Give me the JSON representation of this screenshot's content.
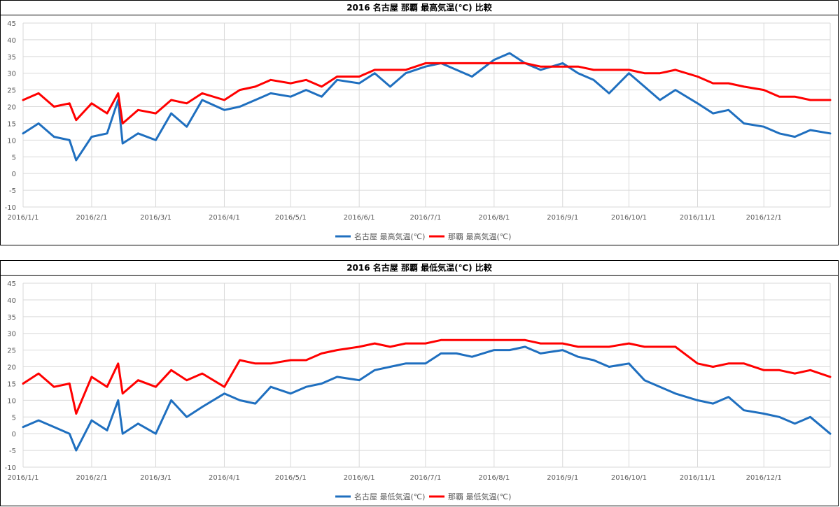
{
  "chart_data": [
    {
      "type": "line",
      "title": "2016 名古屋 那覇 最高気温(℃) 比較",
      "ylim": [
        -10,
        45
      ],
      "yticks": [
        -10,
        -5,
        0,
        5,
        10,
        15,
        20,
        25,
        30,
        35,
        40,
        45
      ],
      "xlim": [
        "2016/1/1",
        "2016/12/31"
      ],
      "xticks": [
        "2016/1/1",
        "2016/2/1",
        "2016/3/1",
        "2016/4/1",
        "2016/5/1",
        "2016/6/1",
        "2016/7/1",
        "2016/8/1",
        "2016/9/1",
        "2016/10/1",
        "2016/11/1",
        "2016/12/1"
      ],
      "grid": "vertical and horizontal",
      "legend": "bottom",
      "series": [
        {
          "name": "名古屋 最高気温(℃)",
          "color": "#1F6FBF",
          "x": [
            "2016/1/1",
            "2016/1/8",
            "2016/1/15",
            "2016/1/22",
            "2016/1/25",
            "2016/2/1",
            "2016/2/8",
            "2016/2/13",
            "2016/2/15",
            "2016/2/22",
            "2016/3/1",
            "2016/3/8",
            "2016/3/15",
            "2016/3/22",
            "2016/4/1",
            "2016/4/8",
            "2016/4/15",
            "2016/4/22",
            "2016/5/1",
            "2016/5/8",
            "2016/5/15",
            "2016/5/22",
            "2016/6/1",
            "2016/6/8",
            "2016/6/15",
            "2016/6/22",
            "2016/7/1",
            "2016/7/8",
            "2016/7/15",
            "2016/7/22",
            "2016/8/1",
            "2016/8/8",
            "2016/8/15",
            "2016/8/22",
            "2016/9/1",
            "2016/9/8",
            "2016/9/15",
            "2016/9/22",
            "2016/10/1",
            "2016/10/8",
            "2016/10/15",
            "2016/10/22",
            "2016/11/1",
            "2016/11/8",
            "2016/11/15",
            "2016/11/22",
            "2016/12/1",
            "2016/12/8",
            "2016/12/15",
            "2016/12/22",
            "2016/12/31"
          ],
          "values": [
            12,
            15,
            11,
            10,
            4,
            11,
            12,
            22,
            9,
            12,
            10,
            18,
            14,
            22,
            19,
            20,
            22,
            24,
            23,
            25,
            23,
            28,
            27,
            30,
            26,
            30,
            32,
            33,
            31,
            29,
            34,
            36,
            33,
            31,
            33,
            30,
            28,
            24,
            30,
            26,
            22,
            25,
            21,
            18,
            19,
            15,
            14,
            12,
            11,
            13,
            12
          ]
        },
        {
          "name": "那覇 最高気温(℃)",
          "color": "#FF0000",
          "x": [
            "2016/1/1",
            "2016/1/8",
            "2016/1/15",
            "2016/1/22",
            "2016/1/25",
            "2016/2/1",
            "2016/2/8",
            "2016/2/13",
            "2016/2/15",
            "2016/2/22",
            "2016/3/1",
            "2016/3/8",
            "2016/3/15",
            "2016/3/22",
            "2016/4/1",
            "2016/4/8",
            "2016/4/15",
            "2016/4/22",
            "2016/5/1",
            "2016/5/8",
            "2016/5/15",
            "2016/5/22",
            "2016/6/1",
            "2016/6/8",
            "2016/6/15",
            "2016/6/22",
            "2016/7/1",
            "2016/7/8",
            "2016/7/15",
            "2016/7/22",
            "2016/8/1",
            "2016/8/8",
            "2016/8/15",
            "2016/8/22",
            "2016/9/1",
            "2016/9/8",
            "2016/9/15",
            "2016/9/22",
            "2016/10/1",
            "2016/10/8",
            "2016/10/15",
            "2016/10/22",
            "2016/11/1",
            "2016/11/8",
            "2016/11/15",
            "2016/11/22",
            "2016/12/1",
            "2016/12/8",
            "2016/12/15",
            "2016/12/22",
            "2016/12/31"
          ],
          "values": [
            22,
            24,
            20,
            21,
            16,
            21,
            18,
            24,
            15,
            19,
            18,
            22,
            21,
            24,
            22,
            25,
            26,
            28,
            27,
            28,
            26,
            29,
            29,
            31,
            31,
            31,
            33,
            33,
            33,
            33,
            33,
            33,
            33,
            32,
            32,
            32,
            31,
            31,
            31,
            30,
            30,
            31,
            29,
            27,
            27,
            26,
            25,
            23,
            23,
            22,
            22
          ]
        }
      ]
    },
    {
      "type": "line",
      "title": "2016 名古屋 那覇 最低気温(℃) 比較",
      "ylim": [
        -10,
        45
      ],
      "yticks": [
        -10,
        -5,
        0,
        5,
        10,
        15,
        20,
        25,
        30,
        35,
        40,
        45
      ],
      "xlim": [
        "2016/1/1",
        "2016/12/31"
      ],
      "xticks": [
        "2016/1/1",
        "2016/2/1",
        "2016/3/1",
        "2016/4/1",
        "2016/5/1",
        "2016/6/1",
        "2016/7/1",
        "2016/8/1",
        "2016/9/1",
        "2016/10/1",
        "2016/11/1",
        "2016/12/1"
      ],
      "grid": "vertical and horizontal",
      "legend": "bottom",
      "series": [
        {
          "name": "名古屋 最低気温(℃)",
          "color": "#1F6FBF",
          "x": [
            "2016/1/1",
            "2016/1/8",
            "2016/1/15",
            "2016/1/22",
            "2016/1/25",
            "2016/2/1",
            "2016/2/8",
            "2016/2/13",
            "2016/2/15",
            "2016/2/22",
            "2016/3/1",
            "2016/3/8",
            "2016/3/15",
            "2016/3/22",
            "2016/4/1",
            "2016/4/8",
            "2016/4/15",
            "2016/4/22",
            "2016/5/1",
            "2016/5/8",
            "2016/5/15",
            "2016/5/22",
            "2016/6/1",
            "2016/6/8",
            "2016/6/15",
            "2016/6/22",
            "2016/7/1",
            "2016/7/8",
            "2016/7/15",
            "2016/7/22",
            "2016/8/1",
            "2016/8/8",
            "2016/8/15",
            "2016/8/22",
            "2016/9/1",
            "2016/9/8",
            "2016/9/15",
            "2016/9/22",
            "2016/10/1",
            "2016/10/8",
            "2016/10/15",
            "2016/10/22",
            "2016/11/1",
            "2016/11/8",
            "2016/11/15",
            "2016/11/22",
            "2016/12/1",
            "2016/12/8",
            "2016/12/15",
            "2016/12/22",
            "2016/12/31"
          ],
          "values": [
            2,
            4,
            2,
            0,
            -5,
            4,
            1,
            10,
            0,
            3,
            0,
            10,
            5,
            8,
            12,
            10,
            9,
            14,
            12,
            14,
            15,
            17,
            16,
            19,
            20,
            21,
            21,
            24,
            24,
            23,
            25,
            25,
            26,
            24,
            25,
            23,
            22,
            20,
            21,
            16,
            14,
            12,
            10,
            9,
            11,
            7,
            6,
            5,
            3,
            5,
            0
          ]
        },
        {
          "name": "那覇 最低気温(℃)",
          "color": "#FF0000",
          "x": [
            "2016/1/1",
            "2016/1/8",
            "2016/1/15",
            "2016/1/22",
            "2016/1/25",
            "2016/2/1",
            "2016/2/8",
            "2016/2/13",
            "2016/2/15",
            "2016/2/22",
            "2016/3/1",
            "2016/3/8",
            "2016/3/15",
            "2016/3/22",
            "2016/4/1",
            "2016/4/8",
            "2016/4/15",
            "2016/4/22",
            "2016/5/1",
            "2016/5/8",
            "2016/5/15",
            "2016/5/22",
            "2016/6/1",
            "2016/6/8",
            "2016/6/15",
            "2016/6/22",
            "2016/7/1",
            "2016/7/8",
            "2016/7/15",
            "2016/7/22",
            "2016/8/1",
            "2016/8/8",
            "2016/8/15",
            "2016/8/22",
            "2016/9/1",
            "2016/9/8",
            "2016/9/15",
            "2016/9/22",
            "2016/10/1",
            "2016/10/8",
            "2016/10/15",
            "2016/10/22",
            "2016/11/1",
            "2016/11/8",
            "2016/11/15",
            "2016/11/22",
            "2016/12/1",
            "2016/12/8",
            "2016/12/15",
            "2016/12/22",
            "2016/12/31"
          ],
          "values": [
            15,
            18,
            14,
            15,
            6,
            17,
            14,
            21,
            12,
            16,
            14,
            19,
            16,
            18,
            14,
            22,
            21,
            21,
            22,
            22,
            24,
            25,
            26,
            27,
            26,
            27,
            27,
            28,
            28,
            28,
            28,
            28,
            28,
            27,
            27,
            26,
            26,
            26,
            27,
            26,
            26,
            26,
            21,
            20,
            21,
            21,
            19,
            19,
            18,
            19,
            17
          ]
        }
      ]
    }
  ]
}
